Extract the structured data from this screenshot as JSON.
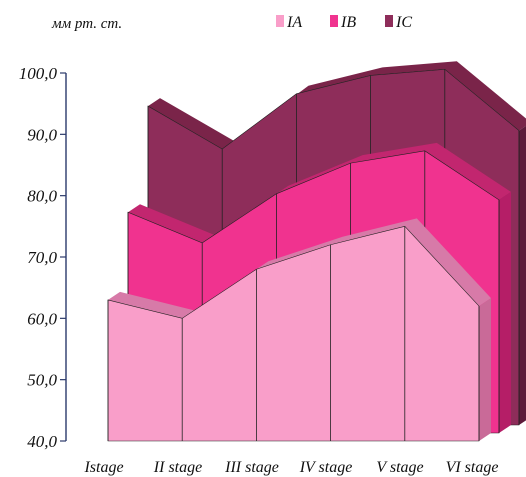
{
  "chart_data": {
    "type": "area",
    "title": "",
    "ylabel": "мм рт. ст.",
    "xlabel": "",
    "categories": [
      "Istage",
      "II stage",
      "III stage",
      "IV stage",
      "V stage",
      "VI stage"
    ],
    "ylim": [
      40,
      100
    ],
    "yticks": [
      "40,0",
      "50,0",
      "60,0",
      "70,0",
      "80,0",
      "90,0",
      "100,0"
    ],
    "ytick_values": [
      40,
      50,
      60,
      70,
      80,
      90,
      100
    ],
    "legend_position": "top-right",
    "grid": false,
    "view": "3d-depth",
    "series": [
      {
        "name": "IA",
        "color": "#f99ec9",
        "values": [
          63,
          60,
          68,
          72,
          75,
          62
        ]
      },
      {
        "name": "IB",
        "color": "#f0338f",
        "values": [
          76,
          71,
          79,
          84,
          86,
          78
        ]
      },
      {
        "name": "IC",
        "color": "#8e2d5a",
        "values": [
          92,
          85,
          94,
          97,
          98,
          88
        ]
      }
    ]
  }
}
